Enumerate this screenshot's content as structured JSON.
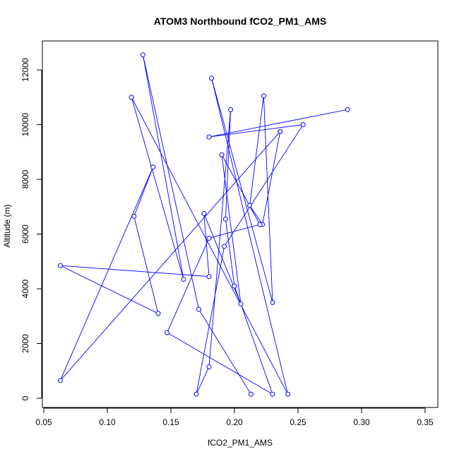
{
  "chart_data": {
    "type": "scatter",
    "title": "ATOM3 Northbound fCO2_PM1_AMS",
    "xlabel": "fCO2_PM1_AMS",
    "ylabel": "Altitude (m)",
    "xlim": [
      0.05,
      0.35
    ],
    "ylim": [
      0,
      12000
    ],
    "xticks": [
      0.05,
      0.1,
      0.15,
      0.2,
      0.25,
      0.3,
      0.35
    ],
    "xtick_labels": [
      "0.05",
      "0.10",
      "0.15",
      "0.20",
      "0.25",
      "0.30",
      "0.35"
    ],
    "yticks": [
      0,
      2000,
      4000,
      6000,
      8000,
      10000,
      12000
    ],
    "ytick_labels": [
      "0",
      "2000",
      "4000",
      "6000",
      "8000",
      "10000",
      "12000"
    ],
    "series_color": "#0000ff",
    "style": "points connected by lines, open circles",
    "grid": false,
    "x": [
      0.213,
      0.172,
      0.128,
      0.16,
      0.119,
      0.242,
      0.182,
      0.23,
      0.223,
      0.212,
      0.222,
      0.236,
      0.063,
      0.136,
      0.121,
      0.14,
      0.063,
      0.18,
      0.176,
      0.205,
      0.19,
      0.22,
      0.18,
      0.147,
      0.23,
      0.2,
      0.193,
      0.197,
      0.18,
      0.17,
      0.192,
      0.254,
      0.18,
      0.289
    ],
    "y": [
      150,
      3250,
      12550,
      4350,
      11000,
      150,
      11700,
      3500,
      11050,
      7050,
      6350,
      9750,
      650,
      8450,
      6650,
      3100,
      4850,
      4450,
      6750,
      3450,
      8900,
      6350,
      5850,
      2400,
      150,
      4100,
      6550,
      10550,
      1150,
      150,
      5550,
      10000,
      9550,
      10550
    ]
  }
}
